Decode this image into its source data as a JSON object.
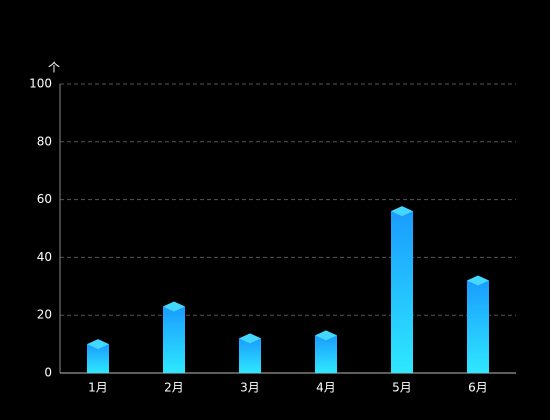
{
  "chart_data": {
    "type": "bar",
    "y_label": "个",
    "categories": [
      "1月",
      "2月",
      "3月",
      "4月",
      "5月",
      "6月"
    ],
    "values": [
      10,
      23,
      12,
      13,
      56,
      32
    ],
    "color": "#1a9cff",
    "color_bottom": "#2ee8ff",
    "top_color": "#45d8ff",
    "ylim": [
      0,
      100
    ],
    "yticks": [
      0,
      20,
      40,
      60,
      80,
      100
    ],
    "grid": true
  }
}
